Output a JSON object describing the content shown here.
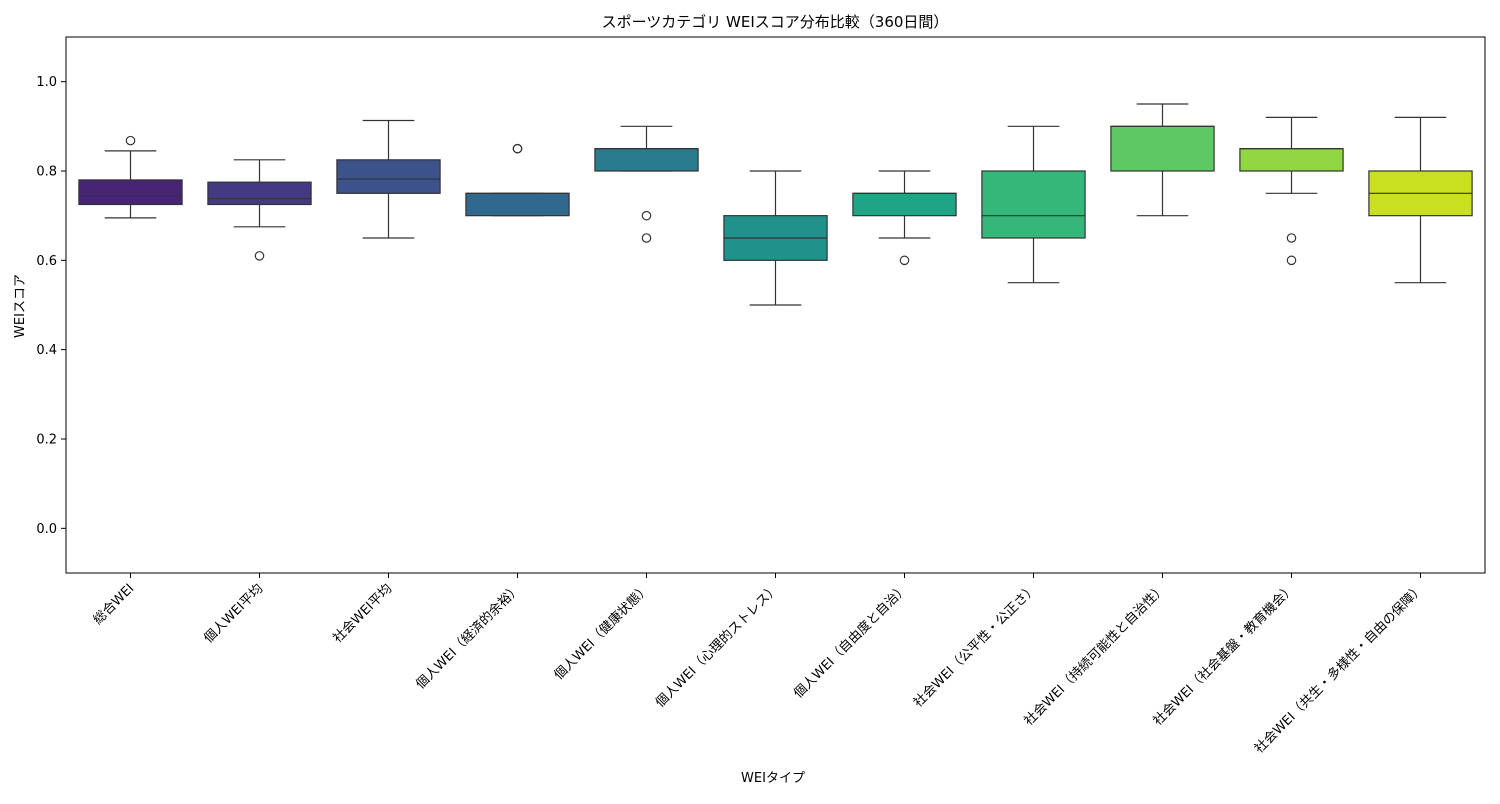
{
  "chart_data": {
    "type": "box",
    "title": "スポーツカテゴリ WEIスコア分布比較（360日間）",
    "xlabel": "WEIタイプ",
    "ylabel": "WEIスコア",
    "ylim": [
      -0.1,
      1.1
    ],
    "yticks": [
      0.0,
      0.2,
      0.4,
      0.6,
      0.8,
      1.0
    ],
    "ytick_labels": [
      "0.0",
      "0.2",
      "0.4",
      "0.6",
      "0.8",
      "1.0"
    ],
    "grid": false,
    "legend": "none",
    "categories": [
      "総合WEI",
      "個人WEI平均",
      "社会WEI平均",
      "個人WEI（経済的余裕）",
      "個人WEI（健康状態）",
      "個人WEI（心理的ストレス）",
      "個人WEI（自由度と自治）",
      "社会WEI（公平性・公正さ）",
      "社会WEI（持続可能性と自治性）",
      "社会WEI（社会基盤・教育機会）",
      "社会WEI（共生・多様性・自由の保障）"
    ],
    "boxes": [
      {
        "whisker_low": 0.695,
        "q1": 0.725,
        "median": 0.745,
        "q3": 0.78,
        "whisker_high": 0.845,
        "outliers": [
          0.868
        ],
        "color": "#482475"
      },
      {
        "whisker_low": 0.675,
        "q1": 0.725,
        "median": 0.738,
        "q3": 0.775,
        "whisker_high": 0.825,
        "outliers": [
          0.61
        ],
        "color": "#443983"
      },
      {
        "whisker_low": 0.65,
        "q1": 0.75,
        "median": 0.782,
        "q3": 0.825,
        "whisker_high": 0.913,
        "outliers": [],
        "color": "#3b528b"
      },
      {
        "whisker_low": 0.7,
        "q1": 0.7,
        "median": 0.75,
        "q3": 0.75,
        "whisker_high": 0.75,
        "outliers": [
          0.85,
          0.85
        ],
        "color": "#31688e"
      },
      {
        "whisker_low": 0.8,
        "q1": 0.8,
        "median": 0.85,
        "q3": 0.85,
        "whisker_high": 0.9,
        "outliers": [
          0.7,
          0.65
        ],
        "color": "#287c8e"
      },
      {
        "whisker_low": 0.5,
        "q1": 0.6,
        "median": 0.65,
        "q3": 0.7,
        "whisker_high": 0.8,
        "outliers": [],
        "color": "#21918c"
      },
      {
        "whisker_low": 0.65,
        "q1": 0.7,
        "median": 0.75,
        "q3": 0.75,
        "whisker_high": 0.8,
        "outliers": [
          0.6
        ],
        "color": "#20a486"
      },
      {
        "whisker_low": 0.55,
        "q1": 0.65,
        "median": 0.7,
        "q3": 0.8,
        "whisker_high": 0.9,
        "outliers": [],
        "color": "#35b779"
      },
      {
        "whisker_low": 0.7,
        "q1": 0.8,
        "median": 0.9,
        "q3": 0.9,
        "whisker_high": 0.95,
        "outliers": [],
        "color": "#5ec962"
      },
      {
        "whisker_low": 0.75,
        "q1": 0.8,
        "median": 0.85,
        "q3": 0.85,
        "whisker_high": 0.92,
        "outliers": [
          0.65,
          0.6
        ],
        "color": "#90d743"
      },
      {
        "whisker_low": 0.55,
        "q1": 0.7,
        "median": 0.75,
        "q3": 0.8,
        "whisker_high": 0.92,
        "outliers": [],
        "color": "#c8e020"
      }
    ]
  }
}
